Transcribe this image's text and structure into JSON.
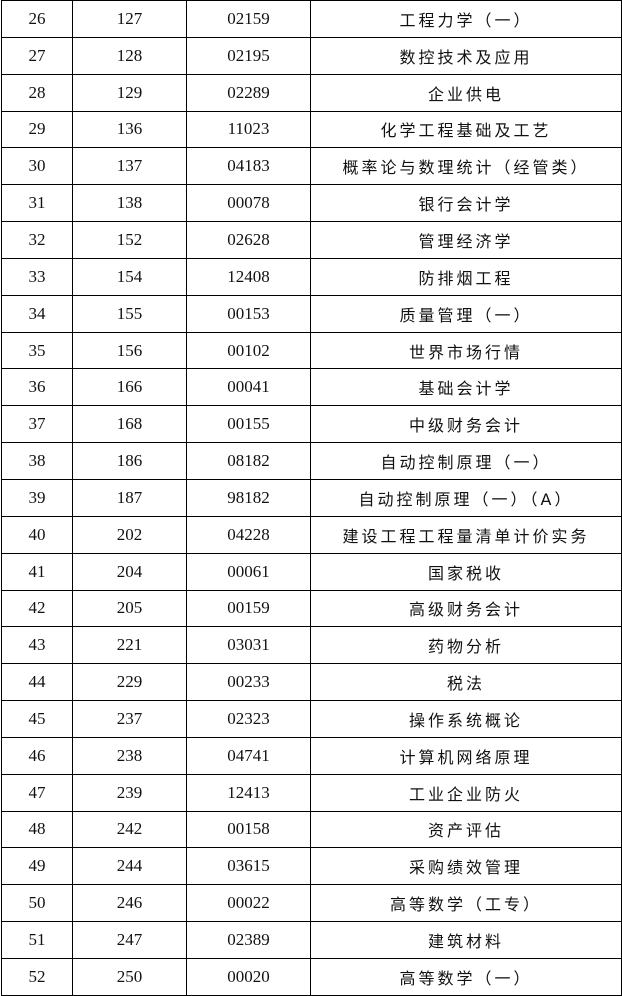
{
  "table": {
    "rows": [
      [
        "26",
        "127",
        "02159",
        "工程力学（一）"
      ],
      [
        "27",
        "128",
        "02195",
        "数控技术及应用"
      ],
      [
        "28",
        "129",
        "02289",
        "企业供电"
      ],
      [
        "29",
        "136",
        "11023",
        "化学工程基础及工艺"
      ],
      [
        "30",
        "137",
        "04183",
        "概率论与数理统计（经管类）"
      ],
      [
        "31",
        "138",
        "00078",
        "银行会计学"
      ],
      [
        "32",
        "152",
        "02628",
        "管理经济学"
      ],
      [
        "33",
        "154",
        "12408",
        "防排烟工程"
      ],
      [
        "34",
        "155",
        "00153",
        "质量管理（一）"
      ],
      [
        "35",
        "156",
        "00102",
        "世界市场行情"
      ],
      [
        "36",
        "166",
        "00041",
        "基础会计学"
      ],
      [
        "37",
        "168",
        "00155",
        "中级财务会计"
      ],
      [
        "38",
        "186",
        "08182",
        "自动控制原理（一）"
      ],
      [
        "39",
        "187",
        "98182",
        "自动控制原理（一）（A）"
      ],
      [
        "40",
        "202",
        "04228",
        "建设工程工程量清单计价实务"
      ],
      [
        "41",
        "204",
        "00061",
        "国家税收"
      ],
      [
        "42",
        "205",
        "00159",
        "高级财务会计"
      ],
      [
        "43",
        "221",
        "03031",
        "药物分析"
      ],
      [
        "44",
        "229",
        "00233",
        "税法"
      ],
      [
        "45",
        "237",
        "02323",
        "操作系统概论"
      ],
      [
        "46",
        "238",
        "04741",
        "计算机网络原理"
      ],
      [
        "47",
        "239",
        "12413",
        "工业企业防火"
      ],
      [
        "48",
        "242",
        "00158",
        "资产评估"
      ],
      [
        "49",
        "244",
        "03615",
        "采购绩效管理"
      ],
      [
        "50",
        "246",
        "00022",
        "高等数学（工专）"
      ],
      [
        "51",
        "247",
        "02389",
        "建筑材料"
      ],
      [
        "52",
        "250",
        "00020",
        "高等数学（一）"
      ]
    ]
  }
}
